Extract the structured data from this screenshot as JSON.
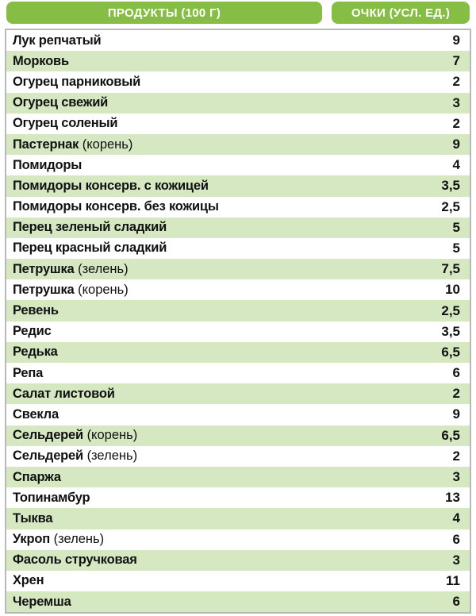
{
  "header": {
    "product": "ПРОДУКТЫ (100 Г)",
    "points": "ОЧКИ (УСЛ. ЕД.)"
  },
  "table": {
    "rows": [
      {
        "name": "Лук репчатый",
        "points": "9"
      },
      {
        "name": "Морковь",
        "points": "7"
      },
      {
        "name": "Огурец парниковый",
        "points": "2"
      },
      {
        "name": "Огурец свежий",
        "points": "3"
      },
      {
        "name": "Огурец соленый",
        "points": "2"
      },
      {
        "name": "Пастернак",
        "note": "(корень)",
        "points": "9"
      },
      {
        "name": "Помидоры",
        "points": "4"
      },
      {
        "name": "Помидоры консерв. с кожицей",
        "points": "3,5"
      },
      {
        "name": "Помидоры консерв. без кожицы",
        "points": "2,5"
      },
      {
        "name": "Перец зеленый сладкий",
        "points": "5"
      },
      {
        "name": "Перец красный сладкий",
        "points": "5"
      },
      {
        "name": "Петрушка",
        "note": "(зелень)",
        "points": "7,5"
      },
      {
        "name": "Петрушка",
        "note": "(корень)",
        "points": "10"
      },
      {
        "name": "Ревень",
        "points": "2,5"
      },
      {
        "name": "Редис",
        "points": "3,5"
      },
      {
        "name": "Редька",
        "points": "6,5"
      },
      {
        "name": "Репа",
        "points": "6"
      },
      {
        "name": "Салат листовой",
        "points": "2"
      },
      {
        "name": "Свекла",
        "points": "9"
      },
      {
        "name": "Сельдерей",
        "note": "(корень)",
        "points": "6,5"
      },
      {
        "name": "Сельдерей",
        "note": "(зелень)",
        "points": "2"
      },
      {
        "name": "Спаржа",
        "points": "3"
      },
      {
        "name": "Топинамбур",
        "points": "13"
      },
      {
        "name": "Тыква",
        "points": "4"
      },
      {
        "name": "Укроп",
        "note": "(зелень)",
        "points": "6"
      },
      {
        "name": "Фасоль стручковая",
        "points": "3"
      },
      {
        "name": "Хрен",
        "points": "11"
      },
      {
        "name": "Черемша",
        "points": "6"
      }
    ]
  }
}
